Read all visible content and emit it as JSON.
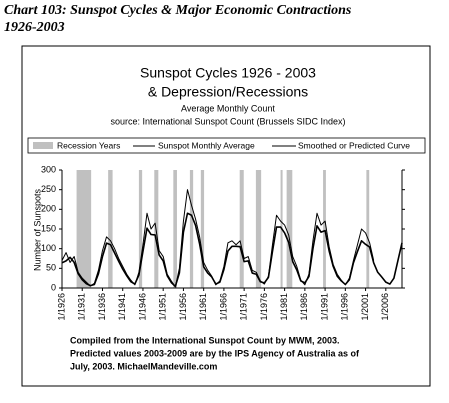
{
  "header": {
    "title": "Chart 103:  Sunspot Cycles & Major Economic Contractions",
    "title2": "1926-2003"
  },
  "chart_data": {
    "type": "line",
    "title": "Sunspot Cycles 1926 - 2003",
    "title2": "& Depression/Recessions",
    "subtitle": "Average Monthly Count",
    "source": "source:   International Sunspot Count (Brussels SIDC Index)",
    "ylabel": "Number of Sunspots",
    "recession_label": "Recession Years",
    "recession_color": "#c0c0c0",
    "recessions": [
      [
        1929.6,
        1933.2
      ],
      [
        1937.4,
        1938.5
      ],
      [
        1945.0,
        1945.8
      ],
      [
        1948.8,
        1949.8
      ],
      [
        1953.5,
        1954.4
      ],
      [
        1957.6,
        1958.4
      ],
      [
        1960.3,
        1961.1
      ],
      [
        1969.9,
        1970.9
      ],
      [
        1973.9,
        1975.2
      ],
      [
        1980.0,
        1980.5
      ],
      [
        1981.5,
        1982.9
      ],
      [
        1990.5,
        1991.2
      ],
      [
        2001.2,
        2001.9
      ]
    ],
    "x": [
      1926,
      1927,
      1928,
      1929,
      1930,
      1931,
      1932,
      1933,
      1934,
      1935,
      1936,
      1937,
      1938,
      1939,
      1940,
      1941,
      1942,
      1943,
      1944,
      1945,
      1946,
      1947,
      1948,
      1949,
      1950,
      1951,
      1952,
      1953,
      1954,
      1955,
      1956,
      1957,
      1958,
      1959,
      1960,
      1961,
      1962,
      1963,
      1964,
      1965,
      1966,
      1967,
      1968,
      1969,
      1970,
      1971,
      1972,
      1973,
      1974,
      1975,
      1976,
      1977,
      1978,
      1979,
      1980,
      1981,
      1982,
      1983,
      1984,
      1985,
      1986,
      1987,
      1988,
      1989,
      1990,
      1991,
      1992,
      1993,
      1994,
      1995,
      1996,
      1997,
      1998,
      1999,
      2000,
      2001,
      2002,
      2003,
      2004,
      2005,
      2006,
      2007,
      2008,
      2009,
      2010
    ],
    "series": [
      {
        "name": "Sunspot Monthly Average",
        "color": "#000000",
        "width": 1,
        "values": [
          70,
          90,
          65,
          80,
          40,
          25,
          15,
          5,
          12,
          45,
          95,
          130,
          120,
          100,
          75,
          55,
          35,
          20,
          8,
          40,
          110,
          190,
          150,
          165,
          95,
          80,
          35,
          18,
          3,
          50,
          170,
          250,
          210,
          175,
          130,
          65,
          45,
          30,
          8,
          18,
          55,
          115,
          120,
          110,
          120,
          75,
          80,
          45,
          40,
          18,
          10,
          30,
          110,
          185,
          170,
          160,
          135,
          80,
          55,
          20,
          8,
          35,
          120,
          190,
          160,
          170,
          105,
          60,
          35,
          20,
          8,
          25,
          70,
          110,
          150,
          140,
          115,
          70,
          null,
          null,
          null,
          null,
          null,
          null,
          null
        ]
      },
      {
        "name": "Smoothed or Predicted Curve",
        "color": "#000000",
        "width": 1.6,
        "values": [
          64,
          69,
          78,
          65,
          36,
          21,
          11,
          6,
          9,
          36,
          80,
          114,
          110,
          89,
          68,
          48,
          31,
          16,
          10,
          33,
          93,
          152,
          136,
          135,
          84,
          69,
          31,
          14,
          4,
          38,
          142,
          190,
          185,
          159,
          112,
          54,
          38,
          28,
          10,
          15,
          47,
          94,
          106,
          106,
          105,
          67,
          69,
          38,
          35,
          16,
          13,
          27,
          93,
          155,
          155,
          140,
          116,
          67,
          46,
          18,
          13,
          29,
          100,
          158,
          142,
          146,
          94,
          55,
          30,
          18,
          9,
          21,
          64,
          93,
          120,
          111,
          104,
          64,
          40,
          28,
          15,
          10,
          25,
          70,
          115
        ]
      }
    ],
    "xlim": [
      1926,
      2010
    ],
    "xticks": [
      {
        "value": 1926,
        "label": "1/1926"
      },
      {
        "value": 1931,
        "label": "1/1931"
      },
      {
        "value": 1936,
        "label": "1/1936"
      },
      {
        "value": 1941,
        "label": "1/1941"
      },
      {
        "value": 1946,
        "label": "1/1946"
      },
      {
        "value": 1951,
        "label": "1/1951"
      },
      {
        "value": 1956,
        "label": "1/1956"
      },
      {
        "value": 1961,
        "label": "1/1961"
      },
      {
        "value": 1966,
        "label": "1/1966"
      },
      {
        "value": 1971,
        "label": "1/1971"
      },
      {
        "value": 1976,
        "label": "1/1976"
      },
      {
        "value": 1981,
        "label": "1/1981"
      },
      {
        "value": 1986,
        "label": "1/1986"
      },
      {
        "value": 1991,
        "label": "1/1991"
      },
      {
        "value": 1996,
        "label": "1/1996"
      },
      {
        "value": 2001,
        "label": "1/2001"
      },
      {
        "value": 2006,
        "label": "1/2006"
      }
    ],
    "ylim": [
      0,
      300
    ],
    "yticks": [
      0,
      50,
      100,
      150,
      200,
      250,
      300
    ],
    "notes": [
      "Compiled from the International Sunspot Count by MWM, 2003.",
      "Predicted values 2003-2009 are by the IPS Agency of Australia as of",
      "July, 2003.  MichaelMandeville.com"
    ]
  }
}
